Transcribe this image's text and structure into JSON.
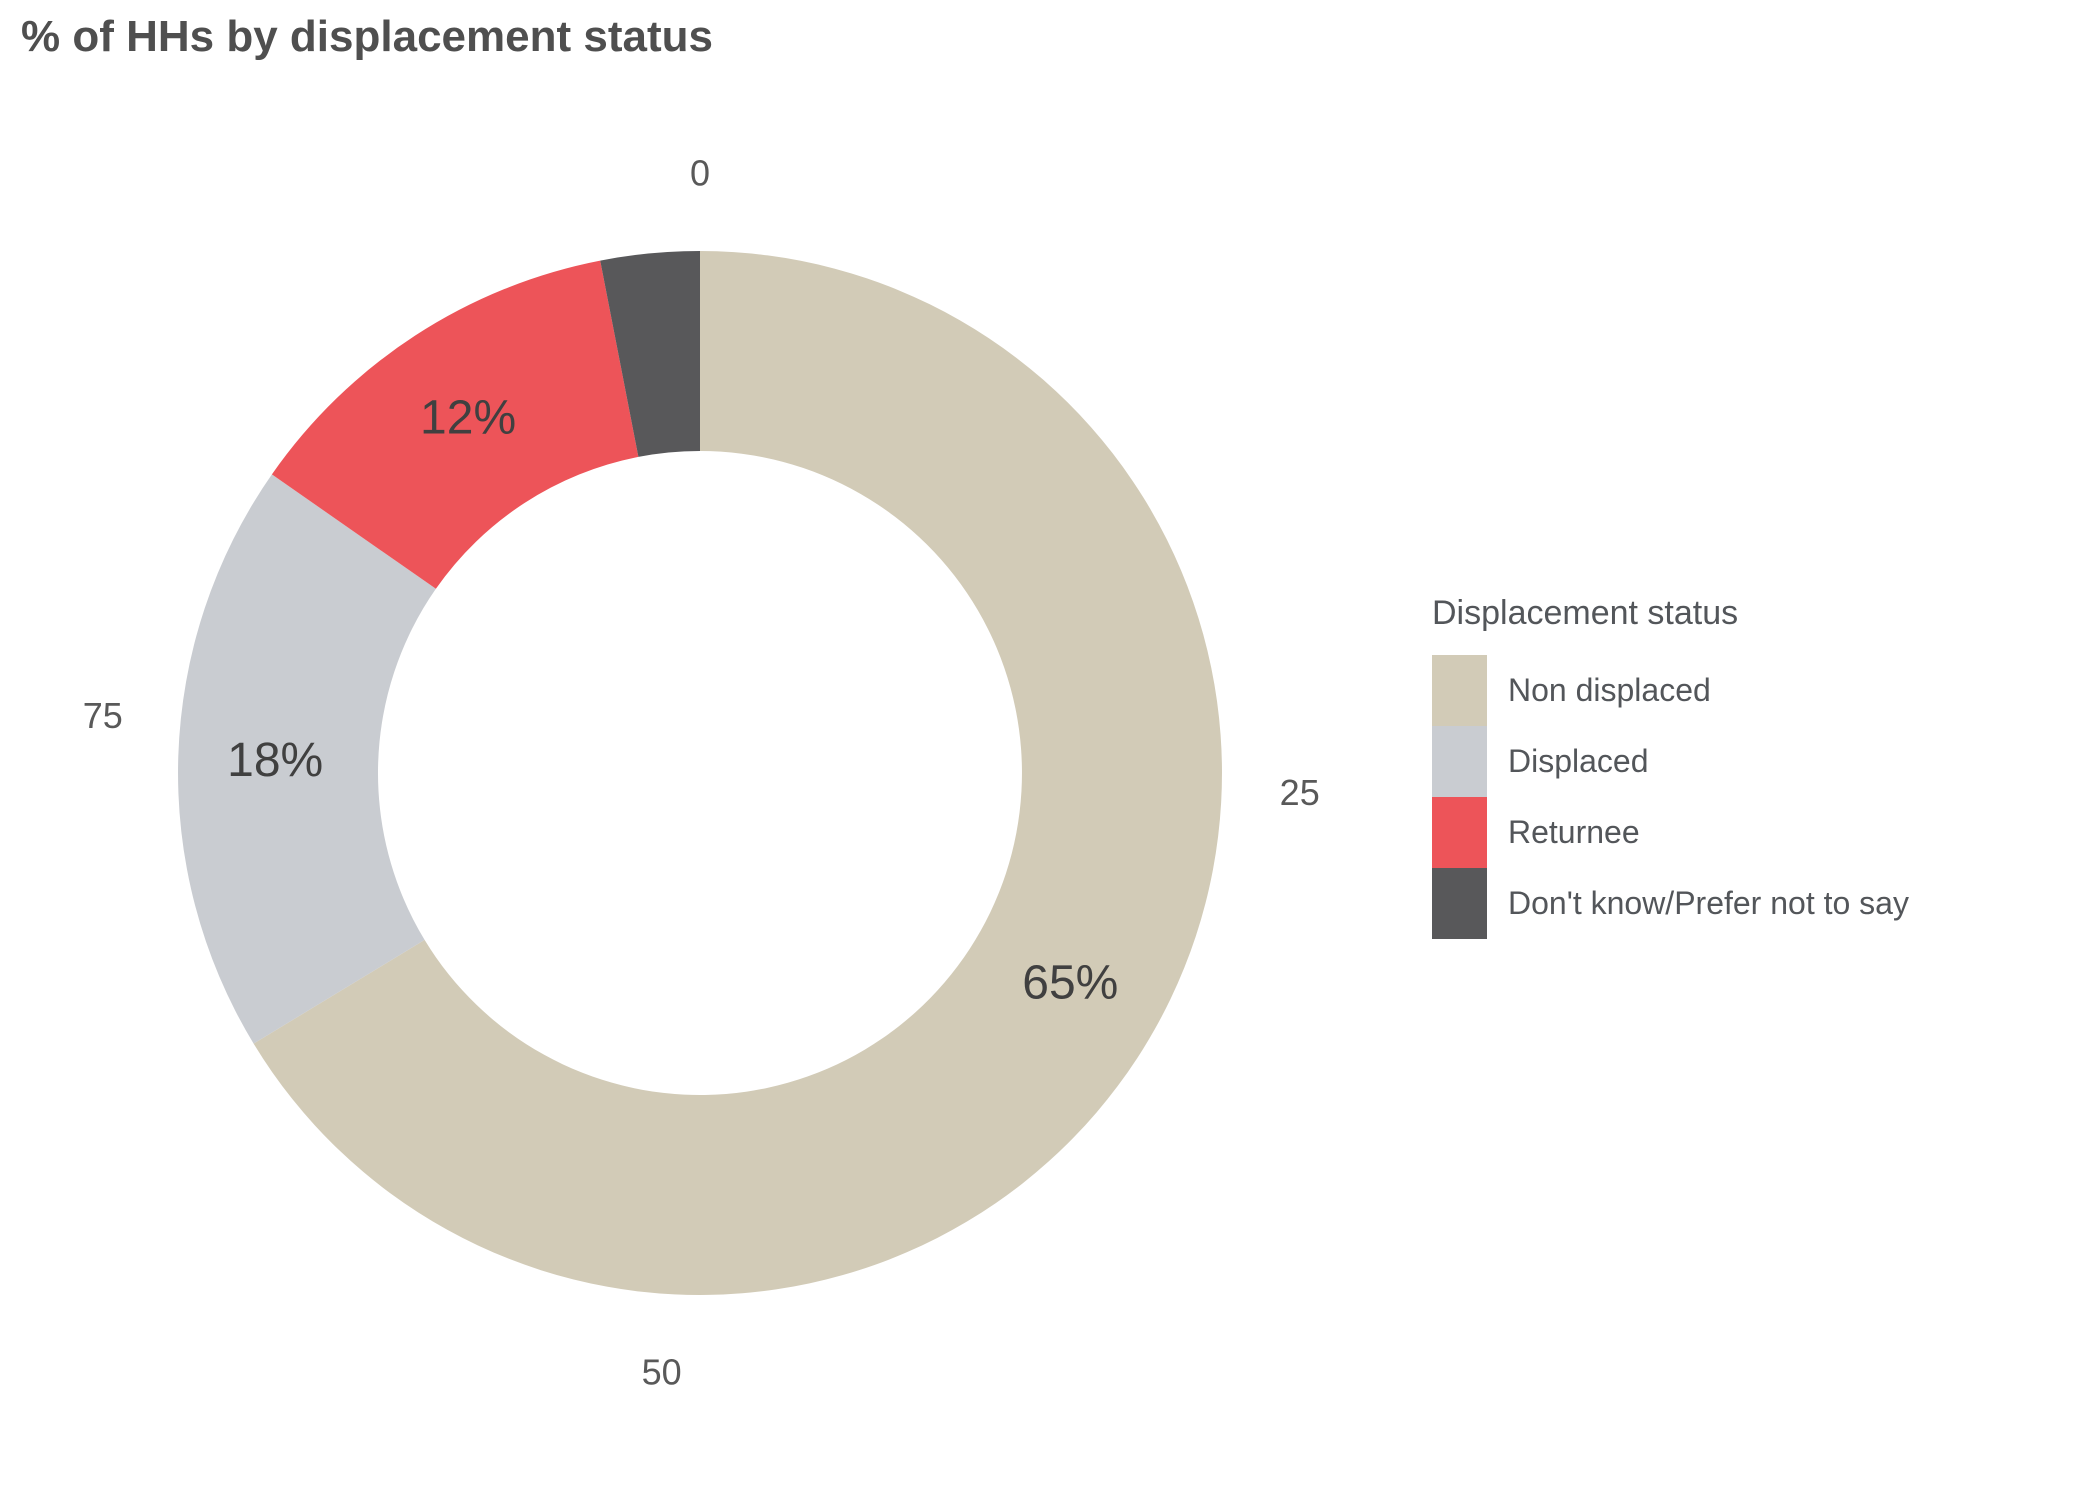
{
  "title": "% of HHs by displacement status",
  "chart_data": {
    "type": "pie",
    "subtype": "donut",
    "title": "% of HHs by displacement status",
    "categories": [
      "Non displaced",
      "Displaced",
      "Returnee",
      "Don't know/Prefer not to say"
    ],
    "values": [
      65,
      18,
      12,
      3
    ],
    "segment_labels": [
      "65%",
      "18%",
      "12%",
      ""
    ],
    "segment_colors": [
      "#d2cbb7",
      "#c9ccd1",
      "#ed5459",
      "#58585a"
    ],
    "axis_ticks": [
      "0",
      "25",
      "50",
      "75"
    ],
    "start_angle_deg": 0,
    "direction": "clockwise",
    "inner_radius_ratio": 0.617,
    "grid": false,
    "legend_position": "right"
  },
  "legend": {
    "title": "Displacement status",
    "items": [
      {
        "label": "Non displaced",
        "color": "#d2cbb7"
      },
      {
        "label": "Displaced",
        "color": "#c9ccd1"
      },
      {
        "label": "Returnee",
        "color": "#ed5459"
      },
      {
        "label": "Don't know/Prefer not to say",
        "color": "#58585a"
      }
    ]
  },
  "colors": {
    "background": "#ffffff",
    "title_text": "#4f4f4f",
    "tick_text": "#595959",
    "segment_label_text": "#404040",
    "legend_text": "#53565a"
  }
}
